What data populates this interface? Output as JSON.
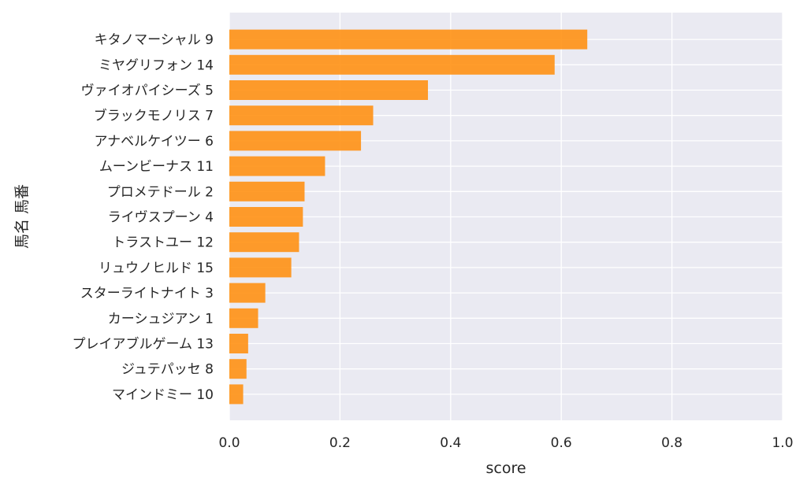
{
  "chart_data": {
    "type": "bar",
    "orientation": "horizontal",
    "categories": [
      "キタノマーシャル 9",
      "ミヤグリフォン 14",
      "ヴァイオパイシーズ 5",
      "ブラックモノリス 7",
      "アナベルケイツー 6",
      "ムーンビーナス 11",
      "プロメテドール 2",
      "ライヴスプーン 4",
      "トラストユー 12",
      "リュウノヒルド 15",
      "スターライトナイト 3",
      "カーシュジアン 1",
      "プレイアブルゲーム 13",
      "ジュテパッセ 8",
      "マインドミー 10"
    ],
    "values": [
      0.647,
      0.588,
      0.359,
      0.26,
      0.238,
      0.173,
      0.136,
      0.133,
      0.126,
      0.112,
      0.065,
      0.052,
      0.034,
      0.031,
      0.025
    ],
    "xlabel": "score",
    "ylabel": "馬名 馬番",
    "xlim": [
      0.0,
      1.0
    ],
    "xticks": [
      "0.0",
      "0.2",
      "0.4",
      "0.6",
      "0.8",
      "1.0"
    ],
    "grid": true,
    "bar_color": "#ff9114",
    "background_color": "#eaeaf2",
    "grid_color": "#ffffff"
  }
}
